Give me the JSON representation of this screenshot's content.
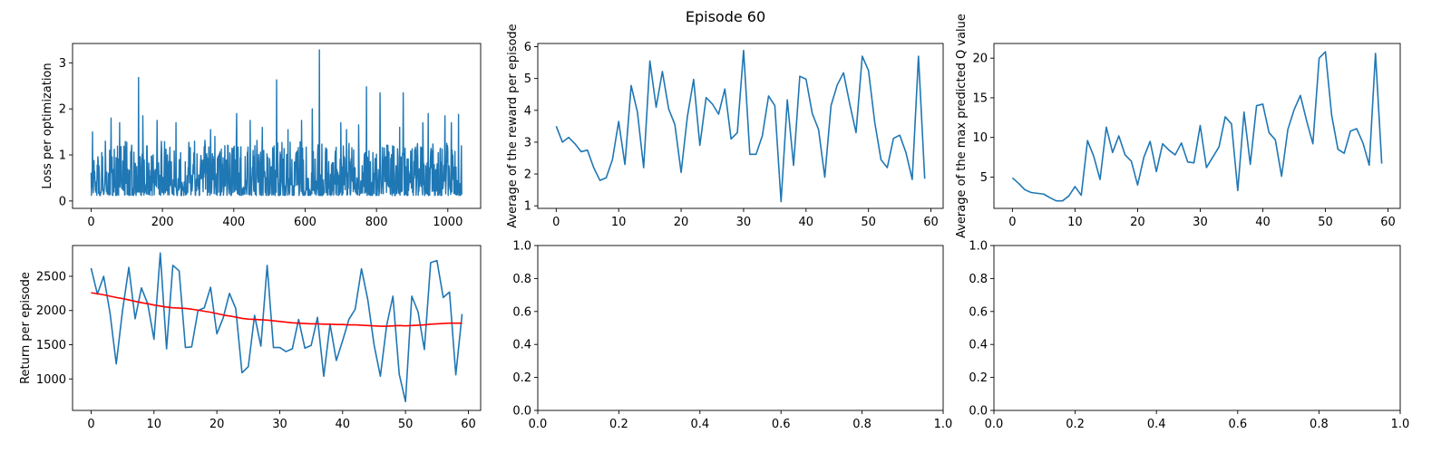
{
  "figure": {
    "title": "Episode 60"
  },
  "colors": {
    "series": "#1f77b4",
    "moving_average": "#ff0000",
    "axes": "#000000",
    "background": "#ffffff"
  },
  "chart_data": [
    {
      "id": "loss",
      "type": "line",
      "title": "",
      "xlabel": "",
      "ylabel": "Loss per optimization",
      "xlim": [
        -52,
        1092
      ],
      "ylim": [
        -0.16,
        3.42
      ],
      "xticks": [
        0,
        200,
        400,
        600,
        800,
        1000
      ],
      "yticks": [
        0,
        1,
        2,
        3
      ],
      "grid": false,
      "noise": {
        "count": 1040,
        "base": 0.12,
        "range": 1.1
      },
      "spikes": [
        {
          "x": 4,
          "y": 1.5
        },
        {
          "x": 40,
          "y": 1.3
        },
        {
          "x": 56,
          "y": 1.8
        },
        {
          "x": 80,
          "y": 1.7
        },
        {
          "x": 133,
          "y": 2.68
        },
        {
          "x": 145,
          "y": 1.85
        },
        {
          "x": 185,
          "y": 1.75
        },
        {
          "x": 238,
          "y": 1.7
        },
        {
          "x": 290,
          "y": 1.3
        },
        {
          "x": 335,
          "y": 1.55
        },
        {
          "x": 347,
          "y": 1.4
        },
        {
          "x": 375,
          "y": 1.2
        },
        {
          "x": 408,
          "y": 1.9
        },
        {
          "x": 446,
          "y": 1.75
        },
        {
          "x": 480,
          "y": 1.6
        },
        {
          "x": 520,
          "y": 2.63
        },
        {
          "x": 552,
          "y": 1.55
        },
        {
          "x": 590,
          "y": 1.75
        },
        {
          "x": 620,
          "y": 2.0
        },
        {
          "x": 640,
          "y": 3.28
        },
        {
          "x": 700,
          "y": 1.7
        },
        {
          "x": 716,
          "y": 1.55
        },
        {
          "x": 750,
          "y": 1.65
        },
        {
          "x": 772,
          "y": 2.48
        },
        {
          "x": 810,
          "y": 2.35
        },
        {
          "x": 865,
          "y": 1.6
        },
        {
          "x": 875,
          "y": 2.35
        },
        {
          "x": 930,
          "y": 1.7
        },
        {
          "x": 945,
          "y": 1.9
        },
        {
          "x": 992,
          "y": 1.85
        },
        {
          "x": 1010,
          "y": 1.7
        },
        {
          "x": 1030,
          "y": 1.88
        }
      ]
    },
    {
      "id": "reward",
      "type": "line",
      "title": "",
      "xlabel": "",
      "ylabel": "Average of the reward per episode",
      "xlim": [
        -2.95,
        61.95
      ],
      "ylim": [
        0.92,
        6.1
      ],
      "xticks": [
        0,
        10,
        20,
        30,
        40,
        50,
        60
      ],
      "yticks": [
        1,
        2,
        3,
        4,
        5,
        6
      ],
      "grid": false,
      "x": [
        0,
        1,
        2,
        3,
        4,
        5,
        6,
        7,
        8,
        9,
        10,
        11,
        12,
        13,
        14,
        15,
        16,
        17,
        18,
        19,
        20,
        21,
        22,
        23,
        24,
        25,
        26,
        27,
        28,
        29,
        30,
        31,
        32,
        33,
        34,
        35,
        36,
        37,
        38,
        39,
        40,
        41,
        42,
        43,
        44,
        45,
        46,
        47,
        48,
        49,
        50,
        51,
        52,
        53,
        54,
        55,
        56,
        57,
        58,
        59
      ],
      "series": [
        {
          "values": [
            3.5,
            3.0,
            3.15,
            2.95,
            2.7,
            2.75,
            2.2,
            1.8,
            1.88,
            2.45,
            3.65,
            2.3,
            4.78,
            3.95,
            2.2,
            5.55,
            4.1,
            5.22,
            4.05,
            3.55,
            2.05,
            3.8,
            4.97,
            2.9,
            4.4,
            4.2,
            3.88,
            4.67,
            3.1,
            3.3,
            5.88,
            2.62,
            2.62,
            3.2,
            4.45,
            4.15,
            1.13,
            4.33,
            2.27,
            5.07,
            4.98,
            3.9,
            3.4,
            1.9,
            4.15,
            4.8,
            5.18,
            4.2,
            3.3,
            5.7,
            5.25,
            3.62,
            2.45,
            2.2,
            3.12,
            3.22,
            2.67,
            1.83,
            5.7,
            1.85
          ]
        }
      ]
    },
    {
      "id": "qvalue",
      "type": "line",
      "title": "",
      "xlabel": "",
      "ylabel": "Average of the max predicted Q value",
      "xlim": [
        -2.95,
        61.95
      ],
      "ylim": [
        1.05,
        21.85
      ],
      "xticks": [
        0,
        10,
        20,
        30,
        40,
        50,
        60
      ],
      "yticks": [
        5,
        10,
        15,
        20
      ],
      "grid": false,
      "x": [
        0,
        1,
        2,
        3,
        4,
        5,
        6,
        7,
        8,
        9,
        10,
        11,
        12,
        13,
        14,
        15,
        16,
        17,
        18,
        19,
        20,
        21,
        22,
        23,
        24,
        25,
        26,
        27,
        28,
        29,
        30,
        31,
        32,
        33,
        34,
        35,
        36,
        37,
        38,
        39,
        40,
        41,
        42,
        43,
        44,
        45,
        46,
        47,
        48,
        49,
        50,
        51,
        52,
        53,
        54,
        55,
        56,
        57,
        58,
        59
      ],
      "series": [
        {
          "values": [
            4.9,
            4.2,
            3.4,
            3.05,
            2.95,
            2.85,
            2.4,
            2.0,
            2.0,
            2.6,
            3.8,
            2.7,
            9.6,
            7.6,
            4.7,
            11.3,
            8.1,
            10.2,
            7.8,
            7.0,
            4.0,
            7.5,
            9.5,
            5.7,
            9.2,
            8.4,
            7.8,
            9.3,
            6.9,
            6.8,
            11.5,
            6.2,
            7.5,
            8.8,
            12.6,
            11.7,
            3.3,
            13.2,
            6.6,
            14.0,
            14.2,
            10.6,
            9.7,
            5.1,
            11.0,
            13.5,
            15.3,
            12.1,
            9.2,
            20.0,
            20.8,
            12.8,
            8.5,
            8.0,
            10.8,
            11.1,
            9.3,
            6.5,
            20.6,
            6.7
          ]
        }
      ]
    },
    {
      "id": "return",
      "type": "line",
      "title": "",
      "xlabel": "",
      "ylabel": "Return per episode",
      "xlim": [
        -2.95,
        61.95
      ],
      "ylim": [
        540,
        2950
      ],
      "xticks": [
        0,
        10,
        20,
        30,
        40,
        50,
        60
      ],
      "yticks": [
        1000,
        1500,
        2000,
        2500
      ],
      "grid": false,
      "x": [
        0,
        1,
        2,
        3,
        4,
        5,
        6,
        7,
        8,
        9,
        10,
        11,
        12,
        13,
        14,
        15,
        16,
        17,
        18,
        19,
        20,
        21,
        22,
        23,
        24,
        25,
        26,
        27,
        28,
        29,
        30,
        31,
        32,
        33,
        34,
        35,
        36,
        37,
        38,
        39,
        40,
        41,
        42,
        43,
        44,
        45,
        46,
        47,
        48,
        49,
        50,
        51,
        52,
        53,
        54,
        55,
        56,
        57,
        58,
        59
      ],
      "series": [
        {
          "values": [
            2620,
            2240,
            2500,
            1970,
            1220,
            2000,
            2630,
            1880,
            2330,
            2100,
            1580,
            2840,
            1440,
            2660,
            2580,
            1460,
            1470,
            2000,
            2040,
            2340,
            1660,
            1890,
            2250,
            2030,
            1090,
            1180,
            1930,
            1480,
            2660,
            1460,
            1460,
            1400,
            1440,
            1870,
            1450,
            1490,
            1900,
            1040,
            1800,
            1270,
            1560,
            1870,
            2020,
            2610,
            2160,
            1500,
            1040,
            1780,
            2210,
            1070,
            670,
            2210,
            1980,
            1430,
            2700,
            2730,
            2190,
            2270,
            1060,
            1950
          ]
        },
        {
          "values": [
            2260,
            2245,
            2230,
            2210,
            2190,
            2175,
            2155,
            2135,
            2115,
            2100,
            2080,
            2065,
            2050,
            2040,
            2035,
            2030,
            2020,
            2005,
            1990,
            1975,
            1955,
            1935,
            1920,
            1905,
            1885,
            1875,
            1870,
            1865,
            1860,
            1850,
            1840,
            1830,
            1820,
            1815,
            1810,
            1805,
            1805,
            1800,
            1800,
            1795,
            1795,
            1790,
            1790,
            1785,
            1780,
            1775,
            1770,
            1770,
            1775,
            1780,
            1775,
            1780,
            1785,
            1790,
            1800,
            1805,
            1810,
            1815,
            1815,
            1815
          ]
        }
      ]
    },
    {
      "id": "empty1",
      "type": "line",
      "title": "",
      "xlabel": "",
      "ylabel": "",
      "xlim": [
        0,
        1
      ],
      "ylim": [
        0,
        1
      ],
      "xticks": [
        0.0,
        0.2,
        0.4,
        0.6,
        0.8,
        1.0
      ],
      "yticks": [
        0.0,
        0.2,
        0.4,
        0.6,
        0.8,
        1.0
      ],
      "grid": false,
      "series": []
    },
    {
      "id": "empty2",
      "type": "line",
      "title": "",
      "xlabel": "",
      "ylabel": "",
      "xlim": [
        0,
        1
      ],
      "ylim": [
        0,
        1
      ],
      "xticks": [
        0.0,
        0.2,
        0.4,
        0.6,
        0.8,
        1.0
      ],
      "yticks": [
        0.0,
        0.2,
        0.4,
        0.6,
        0.8,
        1.0
      ],
      "grid": false,
      "series": []
    }
  ]
}
